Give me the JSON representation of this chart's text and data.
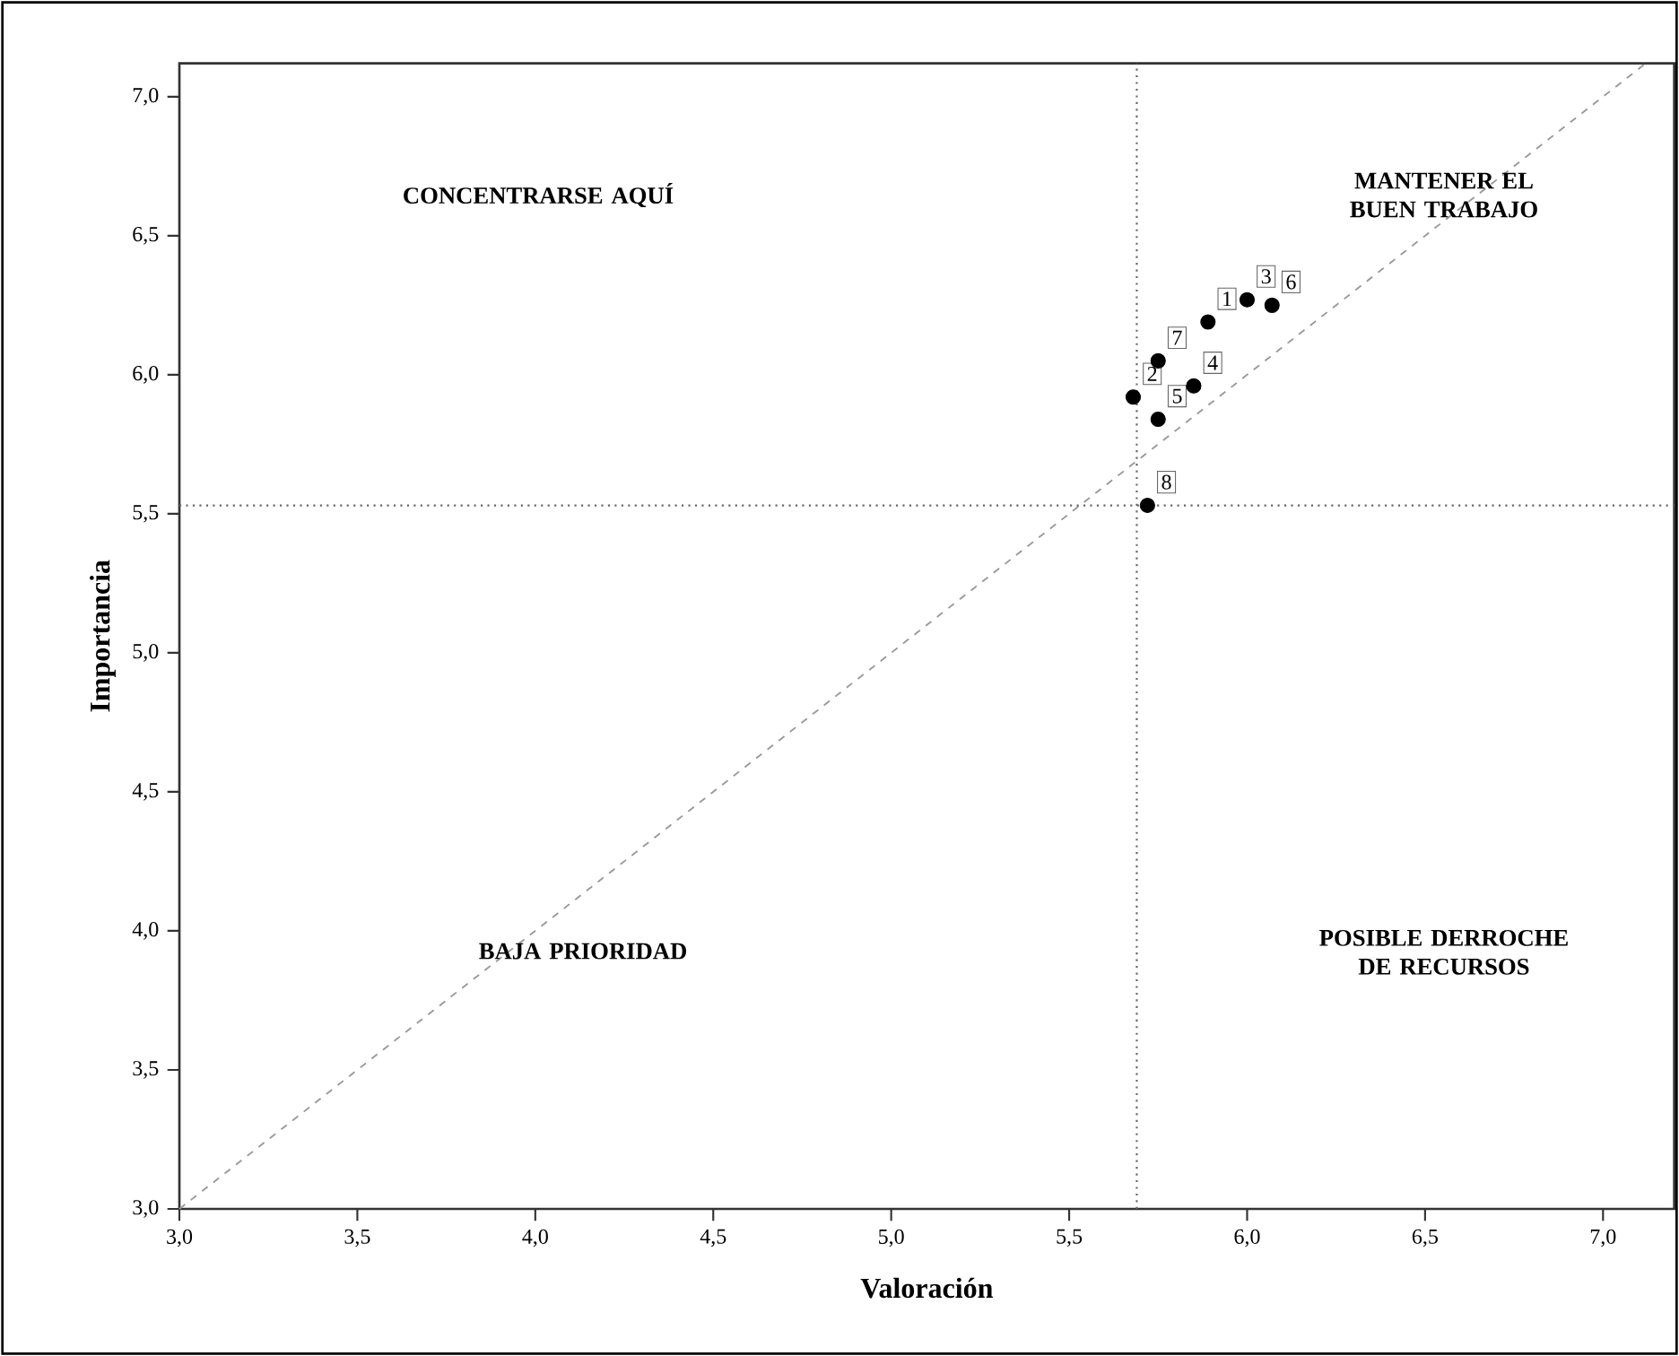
{
  "chart_data": {
    "type": "scatter",
    "xlabel": "Valoración",
    "ylabel": "Importancia",
    "xlim": [
      3,
      7.2
    ],
    "ylim": [
      3,
      7.12
    ],
    "xticks": [
      {
        "value": 3,
        "label": "3,0"
      },
      {
        "value": 3.5,
        "label": "3,5"
      },
      {
        "value": 4,
        "label": "4,0"
      },
      {
        "value": 4.5,
        "label": "4,5"
      },
      {
        "value": 5,
        "label": "5,0"
      },
      {
        "value": 5.5,
        "label": "5,5"
      },
      {
        "value": 6,
        "label": "6,0"
      },
      {
        "value": 6.5,
        "label": "6,5"
      },
      {
        "value": 7,
        "label": "7,0"
      }
    ],
    "yticks": [
      {
        "value": 3,
        "label": "3,0"
      },
      {
        "value": 3.5,
        "label": "3,5"
      },
      {
        "value": 4,
        "label": "4,0"
      },
      {
        "value": 4.5,
        "label": "4,5"
      },
      {
        "value": 5,
        "label": "5,0"
      },
      {
        "value": 5.5,
        "label": "5,5"
      },
      {
        "value": 6,
        "label": "6,0"
      },
      {
        "value": 6.5,
        "label": "6,5"
      },
      {
        "value": 7,
        "label": "7,0"
      }
    ],
    "series": [
      {
        "name": "1",
        "color": "#000000",
        "marker": "circle",
        "x": [
          5.89
        ],
        "values": [
          6.19
        ]
      },
      {
        "name": "2",
        "color": "#000000",
        "marker": "circle",
        "x": [
          5.68
        ],
        "values": [
          5.92
        ]
      },
      {
        "name": "3",
        "color": "#000000",
        "marker": "circle",
        "x": [
          6.0
        ],
        "values": [
          6.27
        ]
      },
      {
        "name": "4",
        "color": "#000000",
        "marker": "circle",
        "x": [
          5.85
        ],
        "values": [
          5.96
        ]
      },
      {
        "name": "5",
        "color": "#000000",
        "marker": "circle",
        "x": [
          5.75
        ],
        "values": [
          5.84
        ]
      },
      {
        "name": "6",
        "color": "#000000",
        "marker": "circle",
        "x": [
          6.07
        ],
        "values": [
          6.25
        ]
      },
      {
        "name": "7",
        "color": "#000000",
        "marker": "circle",
        "x": [
          5.75
        ],
        "values": [
          6.05
        ]
      },
      {
        "name": "8",
        "color": "#000000",
        "marker": "circle",
        "x": [
          5.72
        ],
        "values": [
          5.53
        ]
      },
      {
        "type": "line",
        "color": "#999999",
        "line_style": "dashed",
        "marker": "none",
        "x": [
          3,
          7.12
        ],
        "values": [
          3,
          7.12
        ]
      }
    ],
    "ref_lines": [
      {
        "axis": "x",
        "value": 5.69,
        "color": "#666666",
        "line_style": "dotted"
      },
      {
        "axis": "y",
        "value": 5.53,
        "color": "#666666",
        "line_style": "dotted"
      }
    ],
    "annotations": [
      "CONCENTRARSE AQUÍ",
      "MANTENER EL BUEN TRABAJO",
      "BAJA PRIORIDAD",
      "POSIBLE DERROCHE DE RECURSOS"
    ]
  }
}
